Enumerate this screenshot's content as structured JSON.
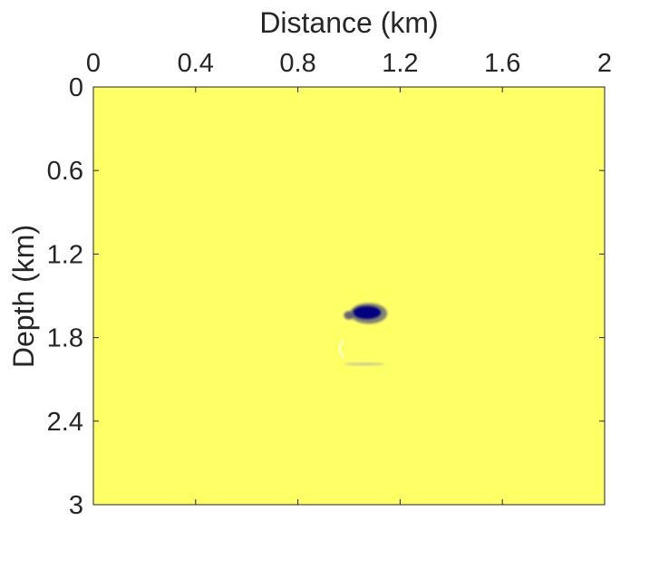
{
  "chart_data": {
    "type": "heatmap",
    "xlabel": "Distance (km)",
    "ylabel": "Depth (km)",
    "xlim": [
      0,
      2
    ],
    "ylim": [
      0,
      3
    ],
    "x_axis_position": "top",
    "y_axis_reversed": true,
    "x_ticks": [
      0,
      0.4,
      0.8,
      1.2,
      1.6,
      2
    ],
    "x_tick_labels": [
      "0",
      "0.4",
      "0.8",
      "1.2",
      "1.6",
      "2"
    ],
    "y_ticks": [
      0,
      0.6,
      1.2,
      1.8,
      2.4,
      3
    ],
    "y_tick_labels": [
      "0",
      "0.6",
      "1.2",
      "1.8",
      "2.4",
      "3"
    ],
    "grid": false,
    "colors": {
      "background": "#ffff66",
      "anomaly_strong": "#000080",
      "anomaly_edge": "#5a5a78",
      "anomaly_faint": "#b8b8a0",
      "axis": "#262626"
    },
    "anomalies": [
      {
        "name": "main anomaly",
        "x_center": 1.07,
        "depth_center": 1.62,
        "x_halfwidth": 0.055,
        "depth_halfwidth": 0.055,
        "intensity": 1.0
      },
      {
        "name": "main anomaly tail",
        "x_center": 1.0,
        "depth_center": 1.64,
        "x_halfwidth": 0.02,
        "depth_halfwidth": 0.03,
        "intensity": 0.6
      },
      {
        "name": "lower reflector",
        "x_center": 1.06,
        "depth_center": 1.99,
        "x_halfwidth": 0.08,
        "depth_halfwidth": 0.008,
        "intensity": 0.35
      },
      {
        "name": "faint arc",
        "x_center": 0.98,
        "depth_center": 1.88,
        "x_halfwidth": 0.015,
        "depth_halfwidth": 0.06,
        "intensity": 0.08
      }
    ]
  }
}
